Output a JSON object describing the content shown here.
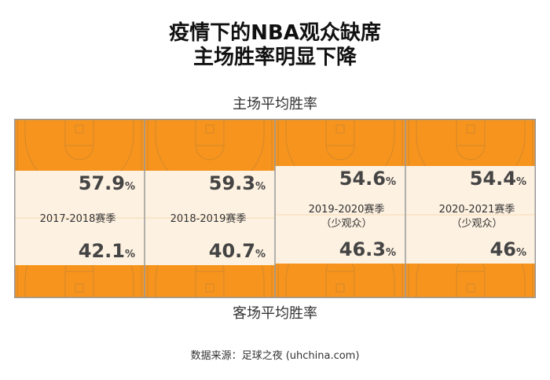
{
  "title_line1": "疫情下的NBA观众缺席",
  "title_line2": "主场胜率明显下降",
  "home_label": "主场平均胜率",
  "away_label": "客场平均胜率",
  "source": "数据来源：足球之夜 (uhchina.com)",
  "colors": {
    "court": "#F7941D",
    "band": "#FDF1E1",
    "border": "#999999",
    "line": "#D98A2A",
    "text": "#444444"
  },
  "chart_data": {
    "type": "table",
    "unit": "%",
    "series": [
      {
        "name": "主场平均胜率",
        "values": [
          57.9,
          59.3,
          54.6,
          54.4
        ]
      },
      {
        "name": "客场平均胜率",
        "values": [
          42.1,
          40.7,
          46.3,
          46
        ]
      }
    ],
    "categories": [
      [
        "2017-2018赛季"
      ],
      [
        "2018-2019赛季"
      ],
      [
        "2019-2020赛季",
        "（少观众）"
      ],
      [
        "2020-2021赛季",
        "（少观众）"
      ]
    ],
    "home_text": [
      "57.9",
      "59.3",
      "54.6",
      "54.4"
    ],
    "away_text": [
      "42.1",
      "40.7",
      "46.3",
      "46"
    ]
  }
}
